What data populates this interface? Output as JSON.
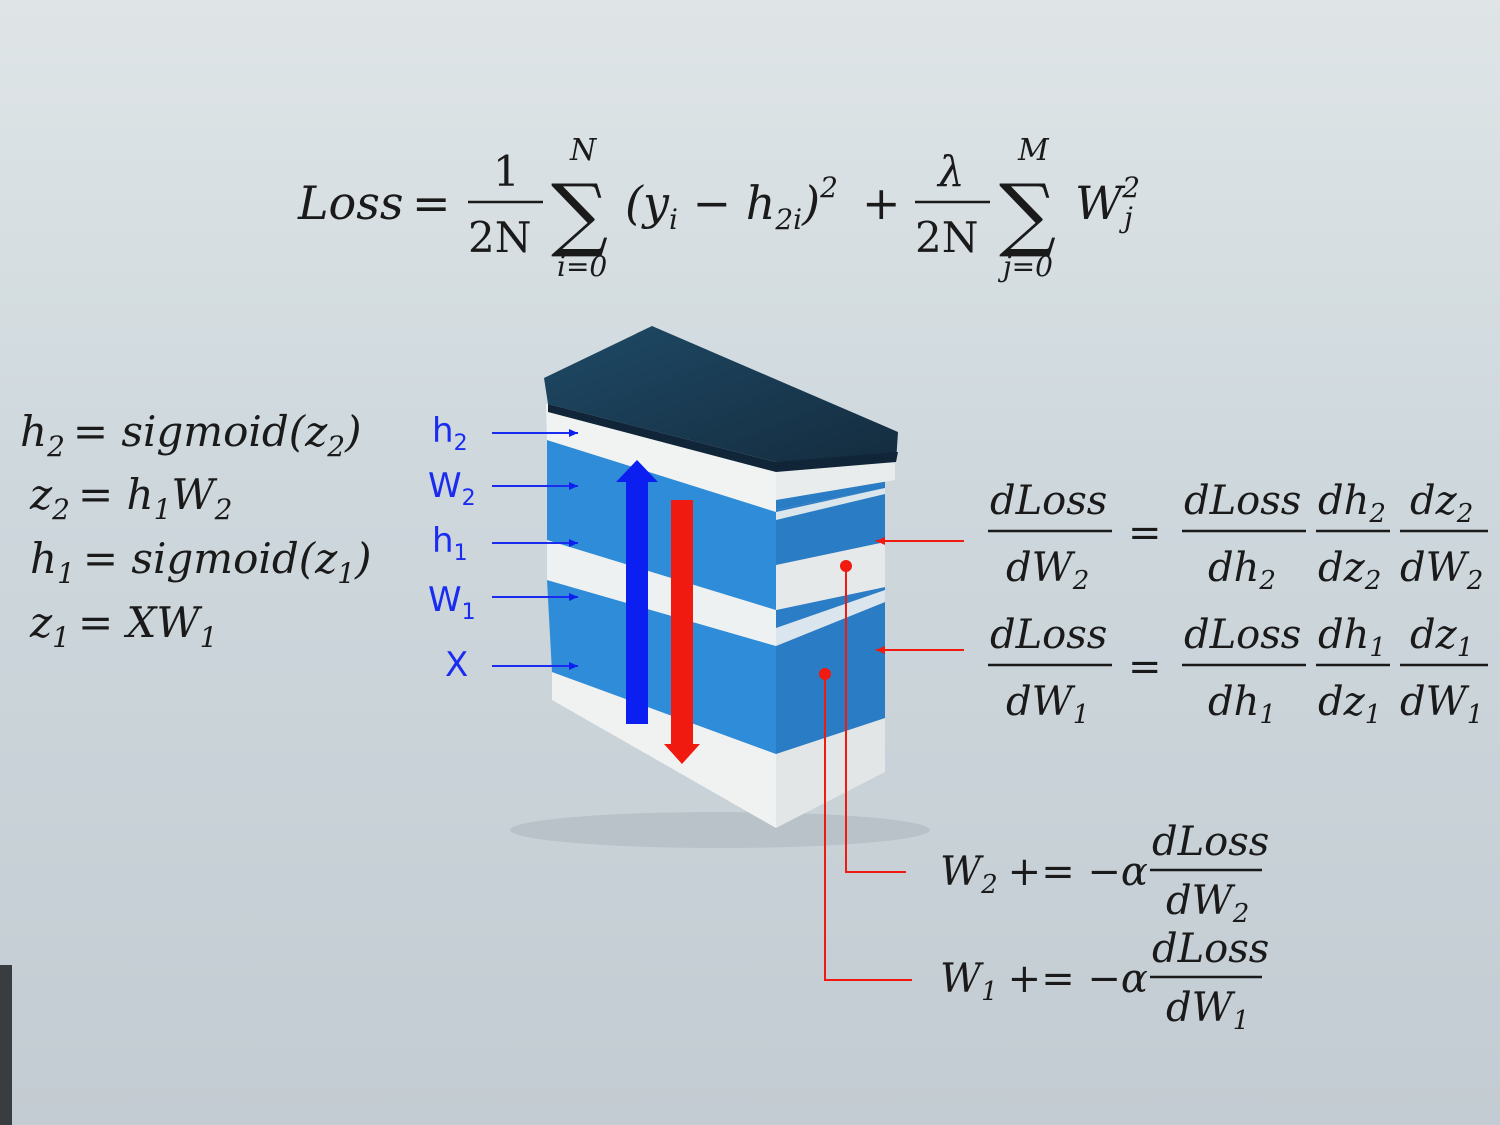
{
  "loss_equation": {
    "lhs": "Loss",
    "eq": "=",
    "frac1_num": "1",
    "frac1_den": "2N",
    "sum1_sym": "∑",
    "sum1_upper": "N",
    "sum1_lower": "i=0",
    "term1": "(y",
    "term1_sub_i": "i",
    "term1_mid": " − h",
    "term1_sub_2i": "2i",
    "term1_close": ")",
    "term1_sup": "2",
    "plus": "+",
    "frac2_num": "λ",
    "frac2_den": "2N",
    "sum2_sym": "∑",
    "sum2_upper": "M",
    "sum2_lower": "j=0",
    "term2": "W",
    "term2_sup": "2",
    "term2_sub": "j"
  },
  "forward_equations": [
    {
      "lhs": "h",
      "lhs_sub": "2",
      "rhs": "= sigmoid(z",
      "rhs_sub": "2",
      "rhs_tail": ")"
    },
    {
      "lhs": "z",
      "lhs_sub": "2",
      "rhs": "= h",
      "rhs_sub": "1",
      "rhs_mid": "W",
      "rhs_sub2": "2"
    },
    {
      "lhs": "h",
      "lhs_sub": "1",
      "rhs": "= sigmoid(z",
      "rhs_sub": "1",
      "rhs_tail": ")"
    },
    {
      "lhs": "z",
      "lhs_sub": "1",
      "rhs": "= XW",
      "rhs_sub": "1"
    }
  ],
  "layer_labels": [
    {
      "base": "h",
      "sub": "2"
    },
    {
      "base": "W",
      "sub": "2"
    },
    {
      "base": "h",
      "sub": "1"
    },
    {
      "base": "W",
      "sub": "1"
    },
    {
      "base": "X",
      "sub": ""
    }
  ],
  "gradient_equations": [
    {
      "lhs_num": "dLoss",
      "lhs_den": "dW",
      "lhs_den_sub": "2",
      "eq": "=",
      "f1_num": "dLoss",
      "f1_den": "dh",
      "f1_den_sub": "2",
      "f2_num": "dh",
      "f2_num_sub": "2",
      "f2_den": "dz",
      "f2_den_sub": "2",
      "f3_num": "dz",
      "f3_num_sub": "2",
      "f3_den": "dW",
      "f3_den_sub": "2"
    },
    {
      "lhs_num": "dLoss",
      "lhs_den": "dW",
      "lhs_den_sub": "1",
      "eq": "=",
      "f1_num": "dLoss",
      "f1_den": "dh",
      "f1_den_sub": "1",
      "f2_num": "dh",
      "f2_num_sub": "1",
      "f2_den": "dz",
      "f2_den_sub": "1",
      "f3_num": "dz",
      "f3_num_sub": "1",
      "f3_den": "dW",
      "f3_den_sub": "1"
    }
  ],
  "update_equations": [
    {
      "lhs": "W",
      "lhs_sub": "2",
      "op": "+= −α",
      "num": "dLoss",
      "den": "dW",
      "den_sub": "2"
    },
    {
      "lhs": "W",
      "lhs_sub": "1",
      "op": "+= −α",
      "num": "dLoss",
      "den": "dW",
      "den_sub": "1"
    }
  ],
  "colors": {
    "background": "#cfd8dc",
    "layer_blue": "#2e86d1",
    "layer_white": "#eef1f1",
    "top_cap": "#1d3f57",
    "forward_arrow": "#0a1ff0",
    "backward_arrow": "#f01a10",
    "label_blue": "#1a2cf0",
    "equation_text": "#1a1a1a"
  }
}
